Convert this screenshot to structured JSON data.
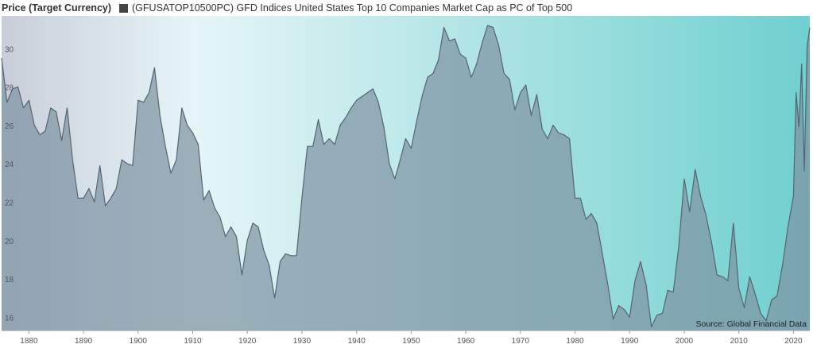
{
  "chart_data": {
    "type": "area",
    "y_axis_title": "Price (Target Currency)",
    "legend": [
      {
        "name": "(GFUSATOP10500PC) GFD Indices United States Top 10 Companies Market Cap as PC of Top 500",
        "color": "#444444"
      }
    ],
    "source": "Source: Global Financial Data",
    "xlim": [
      1875,
      2023
    ],
    "ylim": [
      15.6,
      32
    ],
    "x_ticks": [
      1880,
      1890,
      1900,
      1910,
      1920,
      1930,
      1940,
      1950,
      1960,
      1970,
      1980,
      1990,
      2000,
      2010,
      2020
    ],
    "y_ticks": [
      16,
      18,
      20,
      22,
      24,
      26,
      28,
      30
    ],
    "grid": false,
    "background_gradient": [
      "#c8ced9",
      "#e6f5f7",
      "#6fd0cf"
    ],
    "series": [
      {
        "fill": "#7e94a4",
        "stroke": "#55646f",
        "points": [
          [
            1875,
            29.8
          ],
          [
            1876,
            27.5
          ],
          [
            1877,
            28.2
          ],
          [
            1878,
            28.3
          ],
          [
            1879,
            27.2
          ],
          [
            1880,
            27.6
          ],
          [
            1881,
            26.3
          ],
          [
            1882,
            25.8
          ],
          [
            1883,
            26.0
          ],
          [
            1884,
            27.2
          ],
          [
            1885,
            27.0
          ],
          [
            1886,
            25.5
          ],
          [
            1887,
            27.2
          ],
          [
            1888,
            24.5
          ],
          [
            1889,
            22.5
          ],
          [
            1890,
            22.5
          ],
          [
            1891,
            23.0
          ],
          [
            1892,
            22.3
          ],
          [
            1893,
            24.2
          ],
          [
            1894,
            22.1
          ],
          [
            1895,
            22.5
          ],
          [
            1896,
            23.0
          ],
          [
            1897,
            24.5
          ],
          [
            1898,
            24.3
          ],
          [
            1899,
            24.2
          ],
          [
            1900,
            27.6
          ],
          [
            1901,
            27.5
          ],
          [
            1902,
            28.0
          ],
          [
            1903,
            29.3
          ],
          [
            1904,
            26.8
          ],
          [
            1905,
            25.2
          ],
          [
            1906,
            23.8
          ],
          [
            1907,
            24.5
          ],
          [
            1908,
            27.2
          ],
          [
            1909,
            26.3
          ],
          [
            1910,
            25.9
          ],
          [
            1911,
            25.3
          ],
          [
            1912,
            22.4
          ],
          [
            1913,
            22.9
          ],
          [
            1914,
            22.0
          ],
          [
            1915,
            21.5
          ],
          [
            1916,
            20.5
          ],
          [
            1917,
            21.0
          ],
          [
            1918,
            20.5
          ],
          [
            1919,
            18.5
          ],
          [
            1920,
            20.3
          ],
          [
            1921,
            21.2
          ],
          [
            1922,
            21.0
          ],
          [
            1923,
            19.8
          ],
          [
            1924,
            19.0
          ],
          [
            1925,
            17.3
          ],
          [
            1926,
            19.2
          ],
          [
            1927,
            19.6
          ],
          [
            1928,
            19.5
          ],
          [
            1929,
            19.5
          ],
          [
            1930,
            22.5
          ],
          [
            1931,
            25.2
          ],
          [
            1932,
            25.2
          ],
          [
            1933,
            26.6
          ],
          [
            1934,
            25.3
          ],
          [
            1935,
            25.6
          ],
          [
            1936,
            25.3
          ],
          [
            1937,
            26.3
          ],
          [
            1938,
            26.7
          ],
          [
            1939,
            27.2
          ],
          [
            1940,
            27.6
          ],
          [
            1941,
            27.8
          ],
          [
            1942,
            28.0
          ],
          [
            1943,
            28.2
          ],
          [
            1944,
            27.5
          ],
          [
            1945,
            26.2
          ],
          [
            1946,
            24.3
          ],
          [
            1947,
            23.5
          ],
          [
            1948,
            24.5
          ],
          [
            1949,
            25.6
          ],
          [
            1950,
            25.1
          ],
          [
            1951,
            26.5
          ],
          [
            1952,
            27.8
          ],
          [
            1953,
            28.8
          ],
          [
            1954,
            29.0
          ],
          [
            1955,
            29.7
          ],
          [
            1956,
            31.4
          ],
          [
            1957,
            30.7
          ],
          [
            1958,
            30.8
          ],
          [
            1959,
            30.0
          ],
          [
            1960,
            29.8
          ],
          [
            1961,
            28.8
          ],
          [
            1962,
            29.5
          ],
          [
            1963,
            30.6
          ],
          [
            1964,
            31.5
          ],
          [
            1965,
            31.4
          ],
          [
            1966,
            30.5
          ],
          [
            1967,
            29.0
          ],
          [
            1968,
            28.7
          ],
          [
            1969,
            27.1
          ],
          [
            1970,
            28.0
          ],
          [
            1971,
            28.4
          ],
          [
            1972,
            26.8
          ],
          [
            1973,
            27.9
          ],
          [
            1974,
            26.1
          ],
          [
            1975,
            25.6
          ],
          [
            1976,
            26.3
          ],
          [
            1977,
            25.9
          ],
          [
            1978,
            25.8
          ],
          [
            1979,
            25.6
          ],
          [
            1980,
            22.5
          ],
          [
            1981,
            22.5
          ],
          [
            1982,
            21.4
          ],
          [
            1983,
            21.7
          ],
          [
            1984,
            21.2
          ],
          [
            1985,
            19.6
          ],
          [
            1986,
            18.0
          ],
          [
            1987,
            16.2
          ],
          [
            1988,
            16.9
          ],
          [
            1989,
            16.7
          ],
          [
            1990,
            16.3
          ],
          [
            1991,
            18.2
          ],
          [
            1992,
            19.2
          ],
          [
            1993,
            18.0
          ],
          [
            1994,
            15.8
          ],
          [
            1995,
            16.4
          ],
          [
            1996,
            16.5
          ],
          [
            1997,
            17.7
          ],
          [
            1998,
            17.6
          ],
          [
            1999,
            20.0
          ],
          [
            2000,
            23.5
          ],
          [
            2001,
            21.8
          ],
          [
            2002,
            24.0
          ],
          [
            2003,
            22.6
          ],
          [
            2004,
            21.6
          ],
          [
            2005,
            20.2
          ],
          [
            2006,
            18.5
          ],
          [
            2007,
            18.4
          ],
          [
            2008,
            18.2
          ],
          [
            2009,
            21.2
          ],
          [
            2010,
            17.8
          ],
          [
            2011,
            16.8
          ],
          [
            2012,
            18.4
          ],
          [
            2013,
            17.5
          ],
          [
            2014,
            16.5
          ],
          [
            2015,
            16.1
          ],
          [
            2016,
            17.2
          ],
          [
            2017,
            17.4
          ],
          [
            2018,
            19.0
          ],
          [
            2019,
            21.0
          ],
          [
            2020,
            22.6
          ],
          [
            2020.5,
            28.0
          ],
          [
            2021,
            26.2
          ],
          [
            2021.5,
            29.5
          ],
          [
            2022,
            23.9
          ],
          [
            2022.5,
            30.4
          ],
          [
            2023,
            31.4
          ]
        ]
      }
    ]
  }
}
